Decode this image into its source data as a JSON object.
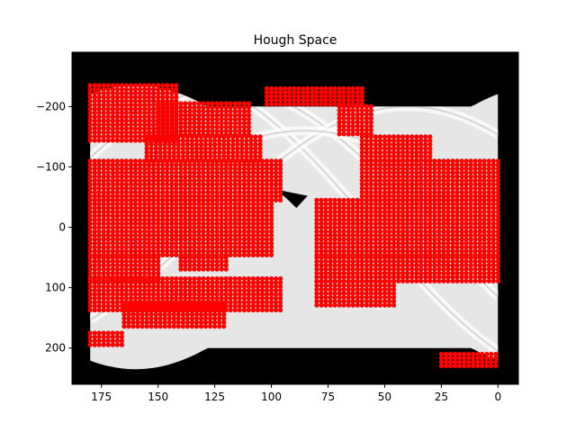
{
  "chart_data": {
    "type": "heatmap",
    "title": "Hough Space",
    "xlabel": "",
    "ylabel": "",
    "xlim": [
      188,
      -9
    ],
    "ylim": [
      260,
      -290
    ],
    "x_ticks": [
      175,
      150,
      125,
      100,
      75,
      50,
      25,
      0
    ],
    "x_tick_labels": [
      "175",
      "150",
      "125",
      "100",
      "75",
      "50",
      "25",
      "0"
    ],
    "y_ticks": [
      -200,
      -100,
      0,
      100,
      200
    ],
    "y_tick_labels": [
      "−200",
      "−100",
      "0",
      "100",
      "200"
    ],
    "image_extent": {
      "theta": [
        180,
        0
      ],
      "rho": [
        -235,
        235
      ]
    },
    "grid": false,
    "colors": {
      "background": "#000000",
      "accumulator": "#e6e6e6",
      "peaks": "#ff0000"
    },
    "accumulator_curves": [
      {
        "theta_amp": 250,
        "phase_deg": 35
      },
      {
        "theta_amp": 230,
        "phase_deg": 60
      },
      {
        "theta_amp": 200,
        "phase_deg": 140
      },
      {
        "theta_amp": 160,
        "phase_deg": 95
      }
    ],
    "peak_regions": [
      {
        "rho_range": [
          -235,
          -140
        ],
        "theta_range": [
          180,
          142
        ]
      },
      {
        "rho_range": [
          -230,
          -200
        ],
        "theta_range": [
          102,
          60
        ]
      },
      {
        "rho_range": [
          -205,
          -150
        ],
        "theta_range": [
          150,
          110
        ]
      },
      {
        "rho_range": [
          -200,
          -150
        ],
        "theta_range": [
          70,
          55
        ]
      },
      {
        "rho_range": [
          -150,
          -105
        ],
        "theta_range": [
          60,
          30
        ]
      },
      {
        "rho_range": [
          -150,
          -110
        ],
        "theta_range": [
          155,
          105
        ]
      },
      {
        "rho_range": [
          -110,
          -45
        ],
        "theta_range": [
          180,
          95
        ]
      },
      {
        "rho_range": [
          -110,
          -45
        ],
        "theta_range": [
          60,
          0
        ]
      },
      {
        "rho_range": [
          -45,
          50
        ],
        "theta_range": [
          180,
          100
        ]
      },
      {
        "rho_range": [
          -45,
          50
        ],
        "theta_range": [
          80,
          0
        ]
      },
      {
        "rho_range": [
          50,
          90
        ],
        "theta_range": [
          180,
          150
        ]
      },
      {
        "rho_range": [
          50,
          70
        ],
        "theta_range": [
          140,
          120
        ]
      },
      {
        "rho_range": [
          50,
          90
        ],
        "theta_range": [
          80,
          0
        ]
      },
      {
        "rho_range": [
          85,
          140
        ],
        "theta_range": [
          180,
          95
        ]
      },
      {
        "rho_range": [
          90,
          130
        ],
        "theta_range": [
          80,
          45
        ]
      },
      {
        "rho_range": [
          125,
          170
        ],
        "theta_range": [
          165,
          120
        ]
      },
      {
        "rho_range": [
          175,
          195
        ],
        "theta_range": [
          180,
          165
        ]
      },
      {
        "rho_range": [
          210,
          235
        ],
        "theta_range": [
          25,
          0
        ]
      }
    ]
  }
}
